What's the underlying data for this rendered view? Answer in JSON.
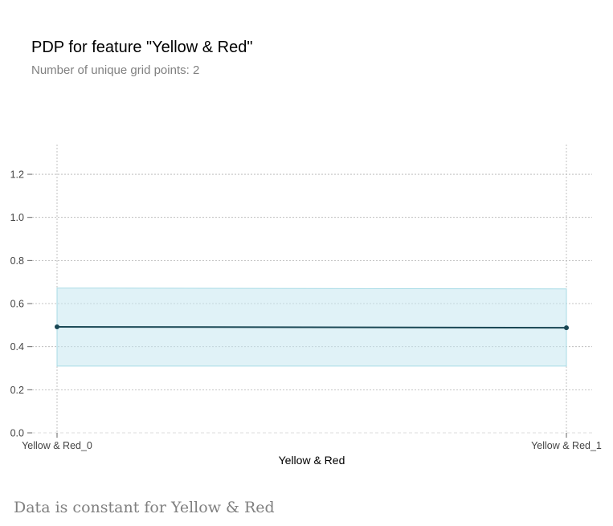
{
  "header": {
    "title": "PDP for feature \"Yellow & Red\"",
    "subtitle": "Number of unique grid points: 2"
  },
  "footer": {
    "note": "Data is constant for Yellow & Red"
  },
  "colors": {
    "line": "#1a4855",
    "band_fill": "#c6e8f0",
    "band_stroke": "#a8dbe6",
    "grid": "#b3b3b3",
    "tick_text": "#444444"
  },
  "chart_data": {
    "type": "line",
    "title": "PDP for feature \"Yellow & Red\"",
    "subtitle": "Number of unique grid points: 2",
    "xlabel": "Yellow & Red",
    "ylabel": "",
    "categories": [
      "Yellow & Red_0",
      "Yellow & Red_1"
    ],
    "series": [
      {
        "values": [
          0.492,
          0.488
        ]
      }
    ],
    "band": {
      "lower": [
        0.31,
        0.31
      ],
      "upper": [
        0.672,
        0.668
      ]
    },
    "ylim": [
      0.0,
      1.35
    ],
    "yticks": [
      0.0,
      0.2,
      0.4,
      0.6,
      0.8,
      1.0,
      1.2
    ],
    "ytick_labels": [
      "0.0",
      "0.2",
      "0.4",
      "0.6",
      "0.8",
      "1.0",
      "1.2"
    ],
    "grid": true
  }
}
